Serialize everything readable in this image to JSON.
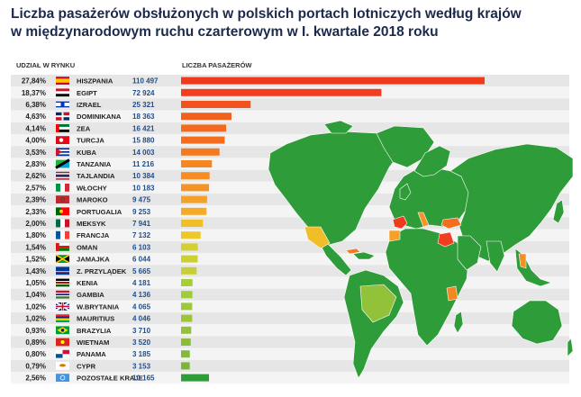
{
  "title_line1": "Liczba pasażerów obsłużonych w polskich portach lotniczych według krajów",
  "title_line2": "w międzynarodowym ruchu czarterowym w I. kwartale 2018 roku",
  "col_share": "UDZIAŁ W RYNKU",
  "col_passengers": "LICZBA PASAŻERÓW",
  "colors": {
    "map_land": "#2e9c38",
    "map_water": "#ffffff",
    "row_even": "#e6e6e6",
    "row_odd": "#f4f4f4",
    "title": "#1b2a4a"
  },
  "chart_data": {
    "type": "bar",
    "orientation": "horizontal",
    "categories": [
      "HISZPANIA",
      "EGIPT",
      "IZRAEL",
      "DOMINIKANA",
      "ZEA",
      "TURCJA",
      "KUBA",
      "TANZANIA",
      "TAJLANDIA",
      "WŁOCHY",
      "MAROKO",
      "PORTUGALIA",
      "MEKSYK",
      "FRANCJA",
      "OMAN",
      "JAMAJKA",
      "Z. PRZYLĄDEK",
      "KENIA",
      "GAMBIA",
      "W.BRYTANIA",
      "MAURITIUS",
      "BRAZYLIA",
      "WIETNAM",
      "PANAMA",
      "CYPR",
      "POZOSTAŁE KRAJE"
    ],
    "shares": [
      "27,84%",
      "18,37%",
      "6,38%",
      "4,63%",
      "4,14%",
      "4,00%",
      "3,53%",
      "2,83%",
      "2,62%",
      "2,57%",
      "2,39%",
      "2,33%",
      "2,00%",
      "1,80%",
      "1,54%",
      "1,52%",
      "1,43%",
      "1,05%",
      "1,04%",
      "1,02%",
      "1,02%",
      "0,93%",
      "0,89%",
      "0,80%",
      "0,79%",
      "2,56%"
    ],
    "value_labels": [
      "110 497",
      "72 924",
      "25 321",
      "18 363",
      "16 421",
      "15 880",
      "14 003",
      "11 216",
      "10 384",
      "10 183",
      "9 475",
      "9 253",
      "7 941",
      "7 132",
      "6 103",
      "6 044",
      "5 665",
      "4 181",
      "4 136",
      "4 065",
      "4 046",
      "3 710",
      "3 520",
      "3 185",
      "3 153",
      "10 165"
    ],
    "values": [
      110497,
      72924,
      25321,
      18363,
      16421,
      15880,
      14003,
      11216,
      10384,
      10183,
      9475,
      9253,
      7941,
      7132,
      6103,
      6044,
      5665,
      4181,
      4136,
      4065,
      4046,
      3710,
      3520,
      3185,
      3153,
      10165
    ],
    "bar_colors": [
      "#f03a1e",
      "#f23d1e",
      "#f2521e",
      "#f2601e",
      "#f36a1e",
      "#f36e1e",
      "#f47a20",
      "#f58622",
      "#f58e24",
      "#f59426",
      "#f5a028",
      "#f5aa2a",
      "#f0be28",
      "#ecc82a",
      "#d6cf32",
      "#cbd034",
      "#c6cf36",
      "#a8cd3a",
      "#a2cb3a",
      "#9ec83a",
      "#9cc63a",
      "#92c23a",
      "#8abe3a",
      "#82ba3a",
      "#7ab63a",
      "#2e9c38"
    ],
    "flags": [
      "es",
      "eg",
      "il",
      "do",
      "ae",
      "tr",
      "cu",
      "tz",
      "th",
      "it",
      "ma",
      "pt",
      "mx",
      "fr",
      "om",
      "jm",
      "cv",
      "ke",
      "gm",
      "gb",
      "mu",
      "br",
      "vn",
      "pa",
      "cy",
      "un"
    ],
    "xlim": [
      0,
      110497
    ]
  }
}
